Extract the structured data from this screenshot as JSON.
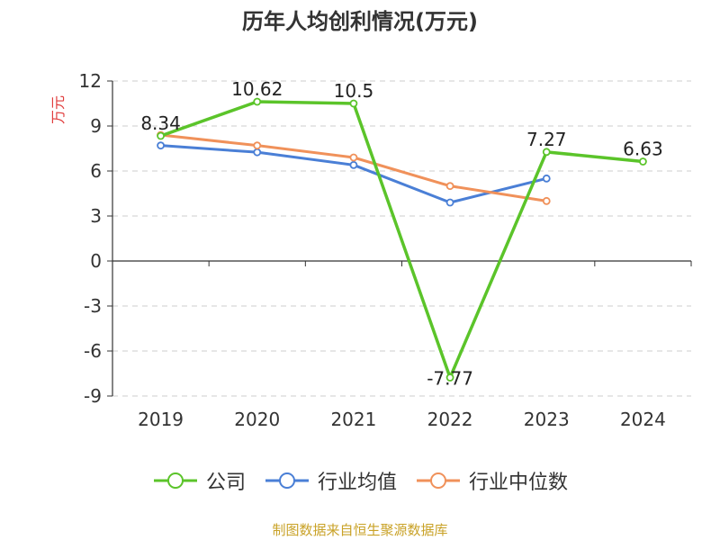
{
  "chart_data": {
    "type": "line",
    "title": "历年人均创利情况(万元)",
    "ylabel": "万元",
    "xlabel": "",
    "categories": [
      "2019",
      "2020",
      "2021",
      "2022",
      "2023",
      "2024"
    ],
    "yticks": [
      "12",
      "9",
      "6",
      "3",
      "0",
      "-3",
      "-6",
      "-9"
    ],
    "ylim": [
      -9,
      12
    ],
    "grid": true,
    "legend_position": "bottom",
    "series": [
      {
        "name": "公司",
        "color": "#5bc42a",
        "values": [
          8.34,
          10.62,
          10.5,
          -7.77,
          7.27,
          6.63
        ],
        "labels": [
          "8.34",
          "10.62",
          "10.5",
          "-7.77",
          "7.27",
          "6.63"
        ]
      },
      {
        "name": "行业均值",
        "color": "#4a7fd6",
        "values": [
          7.7,
          7.25,
          6.4,
          3.9,
          5.5,
          null
        ]
      },
      {
        "name": "行业中位数",
        "color": "#f0915a",
        "values": [
          8.4,
          7.7,
          6.9,
          5.0,
          4.0,
          null
        ]
      }
    ]
  },
  "footer": "制图数据来自恒生聚源数据库"
}
